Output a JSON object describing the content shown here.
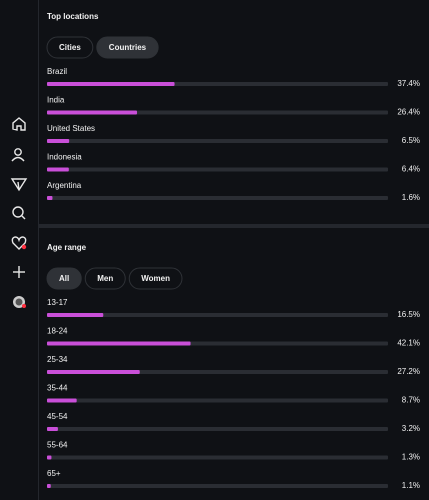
{
  "sections": [
    {
      "title": "Top locations",
      "tabs": [
        "Cities",
        "Countries"
      ],
      "selected_tab": 1,
      "rows": [
        {
          "label": "Brazil",
          "value": 37.4,
          "value_label": "37.4%"
        },
        {
          "label": "India",
          "value": 26.4,
          "value_label": "26.4%"
        },
        {
          "label": "United States",
          "value": 6.5,
          "value_label": "6.5%"
        },
        {
          "label": "Indonesia",
          "value": 6.4,
          "value_label": "6.4%"
        },
        {
          "label": "Argentina",
          "value": 1.6,
          "value_label": "1.6%"
        }
      ]
    },
    {
      "title": "Age range",
      "tabs": [
        "All",
        "Men",
        "Women"
      ],
      "selected_tab": 0,
      "rows": [
        {
          "label": "13-17",
          "value": 16.5,
          "value_label": "16.5%"
        },
        {
          "label": "18-24",
          "value": 42.1,
          "value_label": "42.1%"
        },
        {
          "label": "25-34",
          "value": 27.2,
          "value_label": "27.2%"
        },
        {
          "label": "35-44",
          "value": 8.7,
          "value_label": "8.7%"
        },
        {
          "label": "45-54",
          "value": 3.2,
          "value_label": "3.2%"
        },
        {
          "label": "55-64",
          "value": 1.3,
          "value_label": "1.3%"
        },
        {
          "label": "65+",
          "value": 1.1,
          "value_label": "1.1%"
        }
      ]
    }
  ]
}
